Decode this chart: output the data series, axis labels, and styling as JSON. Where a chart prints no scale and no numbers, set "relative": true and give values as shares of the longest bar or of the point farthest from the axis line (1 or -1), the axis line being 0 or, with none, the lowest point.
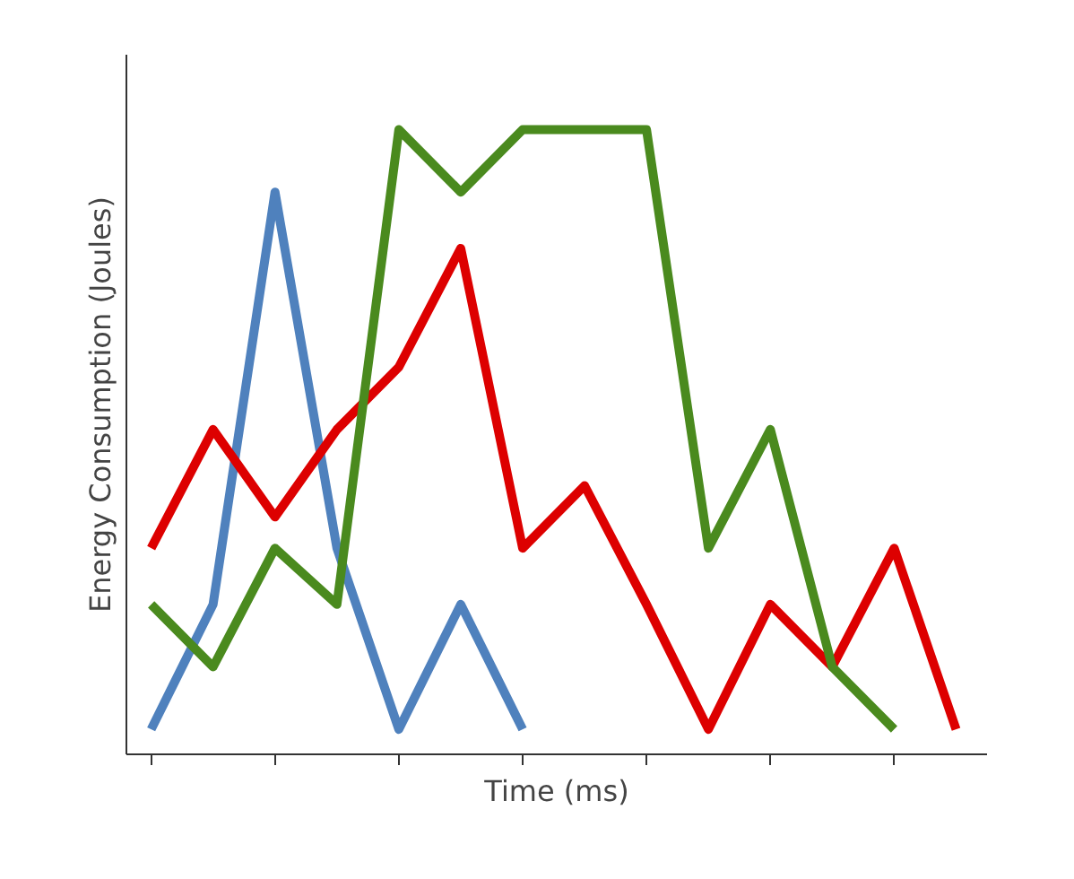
{
  "chart_data": {
    "type": "line",
    "xlabel": "Time (ms)",
    "ylabel": "Energy Consumption (Joules)",
    "relative": true,
    "categories": [
      null,
      null,
      null,
      null,
      null,
      null,
      null,
      null,
      null,
      null,
      null,
      null,
      null,
      null
    ],
    "series": [
      {
        "color": "#4f81bd",
        "values": [
          0.04,
          0.24,
          0.9,
          0.33,
          0.04,
          0.24,
          0.04,
          null,
          null,
          null,
          null,
          null,
          null,
          null
        ]
      },
      {
        "color": "#dd0000",
        "values": [
          0.33,
          0.52,
          0.38,
          0.52,
          0.62,
          0.81,
          0.33,
          0.43,
          0.24,
          0.04,
          0.24,
          0.14,
          0.33,
          0.04
        ]
      },
      {
        "color": "#4a8a1e",
        "values": [
          0.24,
          0.14,
          0.33,
          0.24,
          1,
          0.9,
          1,
          1,
          1,
          0.33,
          0.52,
          0.14,
          0.04,
          null
        ]
      }
    ],
    "line_style": "solid"
  }
}
